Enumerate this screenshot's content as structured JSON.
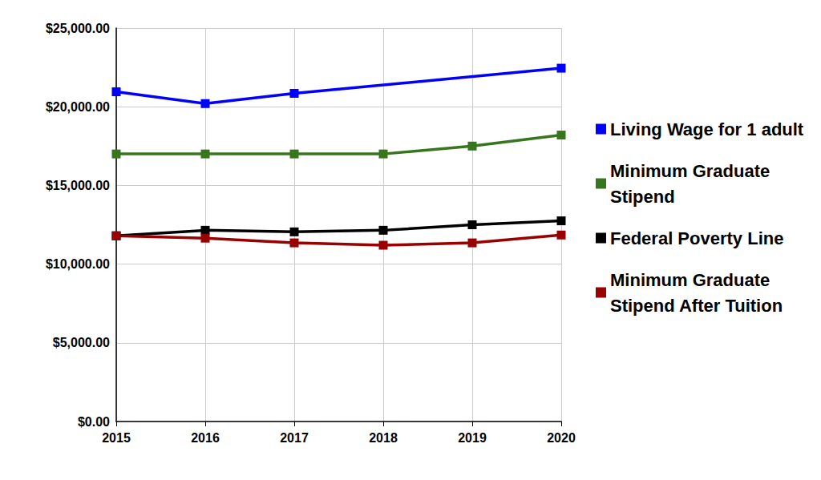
{
  "chart_data": {
    "type": "line",
    "categories": [
      "2015",
      "2016",
      "2017",
      "2018",
      "2019",
      "2020"
    ],
    "series": [
      {
        "name": "Living Wage for 1 adult",
        "color": "#0000ff",
        "values": [
          20950,
          20200,
          20850,
          null,
          null,
          22450
        ]
      },
      {
        "name": "Minimum Graduate Stipend",
        "color": "#38761d",
        "values": [
          17000,
          17000,
          17000,
          17000,
          17500,
          18200
        ]
      },
      {
        "name": "Federal Poverty Line",
        "color": "#000000",
        "values": [
          11800,
          12150,
          12050,
          12150,
          12500,
          12750
        ]
      },
      {
        "name": "Minimum Graduate Stipend After Tuition",
        "color": "#990000",
        "values": [
          11800,
          11650,
          11350,
          11200,
          11350,
          11850
        ]
      }
    ],
    "ylim": [
      0,
      25000
    ],
    "yticks": [
      {
        "value": 0,
        "label": "$0.00"
      },
      {
        "value": 5000,
        "label": "$5,000.00"
      },
      {
        "value": 10000,
        "label": "$10,000.00"
      },
      {
        "value": 15000,
        "label": "$15,000.00"
      },
      {
        "value": 20000,
        "label": "$20,000.00"
      },
      {
        "value": 25000,
        "label": "$25,000.00"
      }
    ],
    "grid": true,
    "legend": "right",
    "marker": "square"
  }
}
